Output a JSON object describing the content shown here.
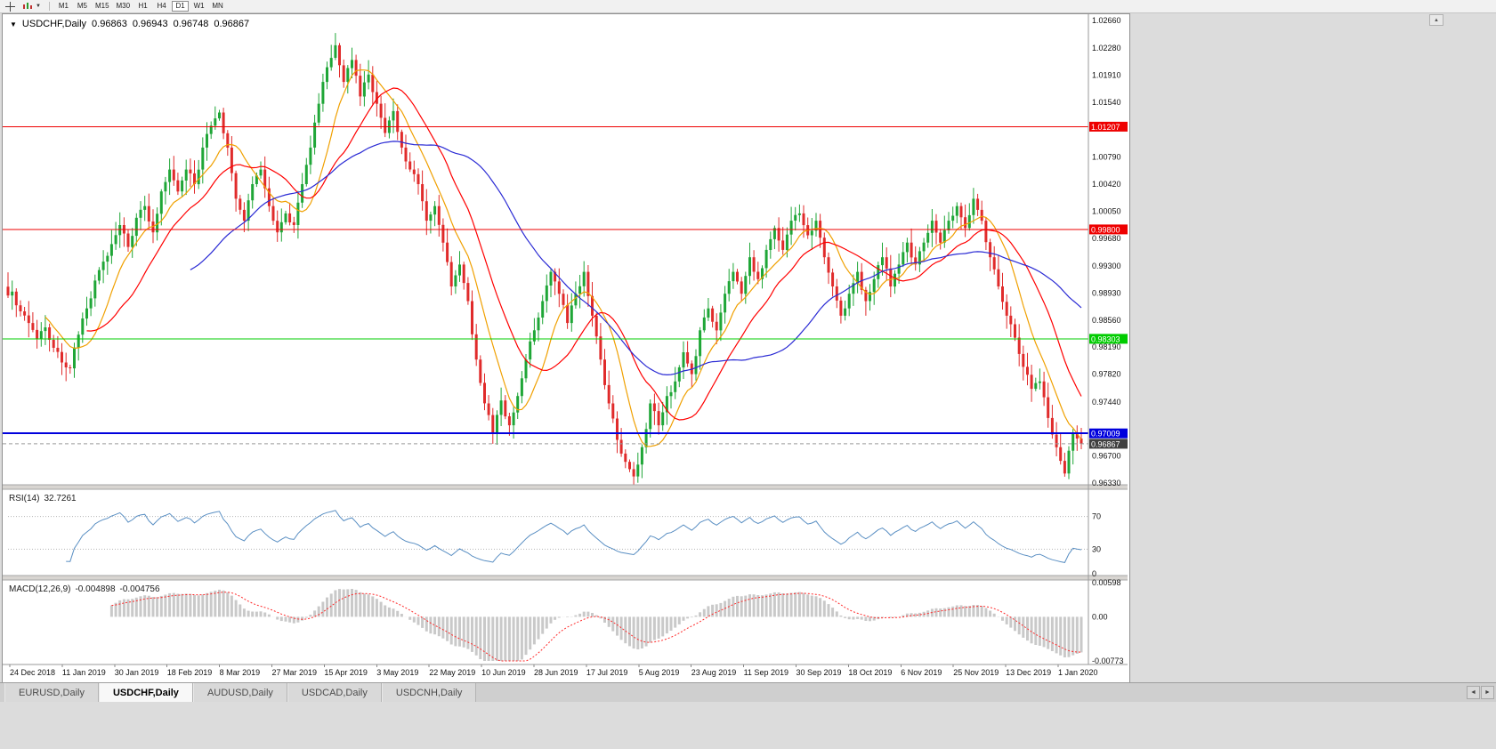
{
  "toolbar": {
    "timeframes": [
      "M1",
      "M5",
      "M15",
      "M30",
      "H1",
      "H4",
      "D1",
      "W1",
      "MN"
    ],
    "active_timeframe": "D1"
  },
  "icons": {
    "dropdown": "▼",
    "scroll_up": "▲",
    "tab_scroll_left": "◄",
    "tab_scroll_right": "►"
  },
  "chart": {
    "title": {
      "symbol": "USDCHF,Daily",
      "open": "0.96863",
      "high": "0.96943",
      "low": "0.96748",
      "close": "0.96867"
    },
    "price_axis": [
      "1.02660",
      "1.02280",
      "1.01910",
      "1.01540",
      "1.00790",
      "1.00420",
      "1.00050",
      "0.99680",
      "0.99300",
      "0.98930",
      "0.98560",
      "0.98190",
      "0.97820",
      "0.97440",
      "0.96700",
      "0.96330"
    ],
    "hlines": [
      {
        "price": 1.01207,
        "label": "1.01207",
        "color": "#ee0000",
        "text": "#ffffff",
        "width": 1
      },
      {
        "price": 0.998,
        "label": "0.99800",
        "color": "#ee0000",
        "text": "#ffffff",
        "width": 1
      },
      {
        "price": 0.98303,
        "label": "0.98303",
        "color": "#00cc00",
        "text": "#ffffff",
        "width": 1
      },
      {
        "price": 0.97009,
        "label": "0.97009",
        "color": "#0000dd",
        "text": "#ffffff",
        "width": 2
      }
    ],
    "current_price": {
      "value": 0.96867,
      "label": "0.96867",
      "tag_bg": "#3f3f3f"
    },
    "dates": [
      "24 Dec 2018",
      "11 Jan 2019",
      "30 Jan 2019",
      "18 Feb 2019",
      "8 Mar 2019",
      "27 Mar 2019",
      "15 Apr 2019",
      "3 May 2019",
      "22 May 2019",
      "10 Jun 2019",
      "28 Jun 2019",
      "17 Jul 2019",
      "5 Aug 2019",
      "23 Aug 2019",
      "11 Sep 2019",
      "30 Sep 2019",
      "18 Oct 2019",
      "6 Nov 2019",
      "25 Nov 2019",
      "13 Dec 2019",
      "1 Jan 2020"
    ]
  },
  "rsi": {
    "name": "RSI(14)",
    "value": "32.7261",
    "period": 14,
    "line_color": "#5a8fc3",
    "levels": [
      {
        "label": "70",
        "value": 70
      },
      {
        "label": "30",
        "value": 30
      },
      {
        "label": "0",
        "value": 0
      }
    ]
  },
  "macd": {
    "name": "MACD(12,26,9)",
    "macd_value": "-0.004898",
    "signal_value": "-0.004756",
    "histogram_color": "#c9c9c9",
    "signal_color": "#ff2a2a",
    "axis": [
      {
        "label": "0.00598",
        "value": 0.00598
      },
      {
        "label": "0.00",
        "value": 0
      },
      {
        "label": "-0.00773",
        "value": -0.00773
      }
    ]
  },
  "tabs": [
    {
      "label": "EURUSD,Daily",
      "active": false
    },
    {
      "label": "USDCHF,Daily",
      "active": true
    },
    {
      "label": "AUDUSD,Daily",
      "active": false
    },
    {
      "label": "USDCAD,Daily",
      "active": false
    },
    {
      "label": "USDCNH,Daily",
      "active": false
    }
  ],
  "colors": {
    "up": "#1fa637",
    "down": "#e02b2b",
    "price_line": "#9a9a9a"
  },
  "chart_data": {
    "type": "candlestick",
    "symbol": "USDCHF",
    "timeframe": "Daily",
    "last_ohlc": {
      "open": 0.96863,
      "high": 0.96943,
      "low": 0.96748,
      "close": 0.96867
    },
    "y_range": [
      0.9633,
      1.0266
    ],
    "x_start": "24 Dec 2018",
    "x_end": "1 Jan 2020",
    "key_levels": [
      1.01207,
      0.998,
      0.98303,
      0.97009
    ],
    "closes": [
      0.9895,
      0.9868,
      0.9852,
      0.983,
      0.9846,
      0.9818,
      0.9798,
      0.979,
      0.9836,
      0.9872,
      0.991,
      0.9936,
      0.996,
      0.9986,
      0.9956,
      0.9996,
      1.0012,
      0.9976,
      1.0032,
      1.0062,
      1.0032,
      1.0062,
      1.0042,
      1.0092,
      1.0122,
      1.014,
      1.0092,
      1.0022,
      0.9992,
      1.0042,
      1.0062,
      1.0012,
      0.9976,
      1.0002,
      0.9986,
      1.0042,
      1.0092,
      1.0152,
      1.0202,
      1.0232,
      1.0182,
      1.0212,
      1.0162,
      1.0192,
      1.0152,
      1.0112,
      1.0142,
      1.0092,
      1.0062,
      1.0042,
      0.9992,
      1.0012,
      0.9962,
      0.9902,
      0.9932,
      0.9882,
      0.9802,
      0.9742,
      0.9702,
      0.9746,
      0.9712,
      0.9752,
      0.9802,
      0.9842,
      0.9882,
      0.9922,
      0.9892,
      0.9852,
      0.9892,
      0.9922,
      0.9862,
      0.9802,
      0.9742,
      0.9692,
      0.9662,
      0.9642,
      0.9682,
      0.9742,
      0.9712,
      0.9752,
      0.9772,
      0.9812,
      0.9782,
      0.9842,
      0.9872,
      0.9842,
      0.9892,
      0.9922,
      0.9892,
      0.9942,
      0.9912,
      0.9952,
      0.9982,
      0.9952,
      0.9992,
      1.0002,
      0.9972,
      0.9992,
      0.9942,
      0.9902,
      0.9862,
      0.9892,
      0.9922,
      0.9882,
      0.9912,
      0.9942,
      0.9902,
      0.9932,
      0.9962,
      0.9932,
      0.9962,
      0.9992,
      0.9962,
      0.9992,
      1.0012,
      0.9982,
      1.0022,
      0.9992,
      0.9942,
      0.9902,
      0.9862,
      0.9832,
      0.9792,
      0.9762,
      0.9772,
      0.9722,
      0.9682,
      0.9646,
      0.9702,
      0.96867
    ],
    "moving_averages": [
      {
        "period": 10,
        "color": "#f0a000"
      },
      {
        "period": 20,
        "color": "#ff0000"
      },
      {
        "period": 45,
        "color": "#2a2ad4"
      }
    ],
    "indicators": [
      {
        "name": "RSI",
        "period": 14,
        "last": 32.7261
      },
      {
        "name": "MACD",
        "fast": 12,
        "slow": 26,
        "signal": 9,
        "last_macd": -0.004898,
        "last_signal": -0.004756
      }
    ]
  }
}
